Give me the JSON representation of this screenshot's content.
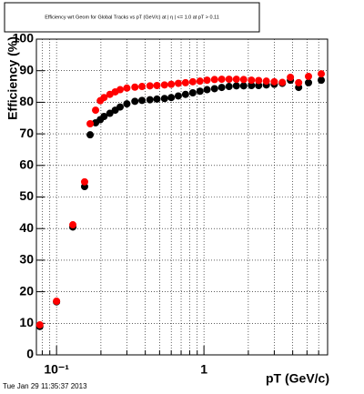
{
  "chart_data": {
    "type": "scatter",
    "title": "Efficiency wrt Geom for Global Tracks vs pT (GeV/c) at | η | <= 1.0 at pT > 0.11",
    "x_label": "pT (GeV/c)",
    "y_label": "Efficiency (%)",
    "timestamp": "Tue Jan 29 11:35:37 2013",
    "x": [
      0.077,
      0.1,
      0.129,
      0.155,
      0.169,
      0.184,
      0.198,
      0.21,
      0.23,
      0.25,
      0.27,
      0.3,
      0.34,
      0.38,
      0.43,
      0.48,
      0.54,
      0.6,
      0.67,
      0.75,
      0.84,
      0.94,
      1.05,
      1.18,
      1.32,
      1.48,
      1.66,
      1.86,
      2.1,
      2.35,
      2.65,
      3.0,
      3.4,
      3.86,
      4.39,
      5.12,
      6.25
    ],
    "series": [
      {
        "color": "#000000",
        "values": [
          9,
          16.8,
          40.5,
          53.3,
          69.7,
          73.5,
          74.5,
          75.5,
          76.5,
          77.5,
          78.5,
          79.5,
          80.3,
          80.6,
          80.8,
          81,
          81.2,
          81.5,
          82,
          82.5,
          83,
          83.5,
          84,
          84.3,
          84.7,
          85,
          85.2,
          85.2,
          85.3,
          85.3,
          85.5,
          85.7,
          86,
          87,
          84.7,
          86.2,
          87.0
        ]
      },
      {
        "color": "#ff0000",
        "values": [
          9.5,
          17,
          41.2,
          54.8,
          73.2,
          77.5,
          80.5,
          81.5,
          82.5,
          83.3,
          84,
          84.5,
          84.8,
          85,
          85.2,
          85.3,
          85.5,
          85.7,
          86,
          86.2,
          86.5,
          86.7,
          87,
          87.2,
          87.3,
          87.3,
          87.3,
          87.2,
          87,
          86.9,
          86.7,
          86.5,
          86.3,
          87.9,
          86.2,
          88.2,
          89.0
        ]
      }
    ],
    "xlog": true,
    "xlim": [
      0.073,
      6.9
    ],
    "xticks": [
      {
        "value": 0.1,
        "label": "10⁻¹"
      },
      1
    ],
    "ylim": [
      0,
      100
    ],
    "yticks": [
      0,
      10,
      20,
      30,
      40,
      50,
      60,
      70,
      80,
      90,
      100
    ],
    "grid": true
  }
}
